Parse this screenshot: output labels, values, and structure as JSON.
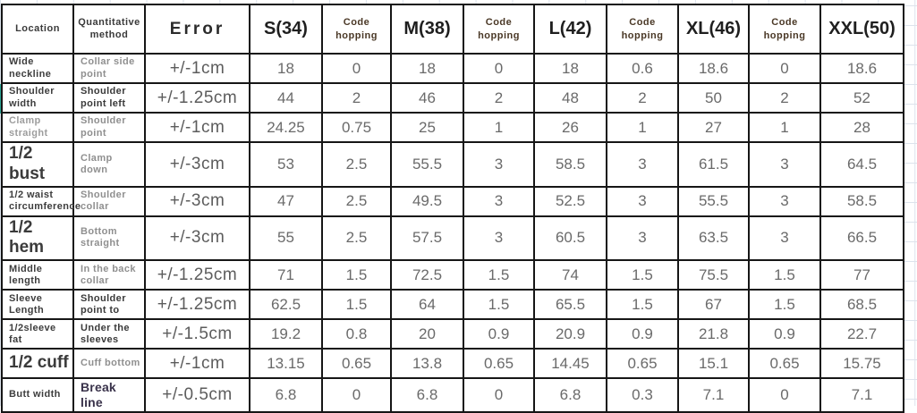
{
  "colors": {
    "grid_line": "#dde3ec",
    "table_border": "#161616",
    "number_text": "#6a6a6a",
    "code_hopping_header": "#4a3826",
    "break_line_text": "#39324a",
    "left_edge_accent": "#2aa392"
  },
  "table": {
    "columns": [
      {
        "key": "location",
        "label": "Location"
      },
      {
        "key": "method",
        "label": "Quantitative method"
      },
      {
        "key": "error",
        "label": "Error"
      },
      {
        "key": "s",
        "label": "S(34)"
      },
      {
        "key": "ch1",
        "label": "Code hopping"
      },
      {
        "key": "m",
        "label": "M(38)"
      },
      {
        "key": "ch2",
        "label": "Code hopping"
      },
      {
        "key": "l",
        "label": "L(42)"
      },
      {
        "key": "ch3",
        "label": "Code hopping"
      },
      {
        "key": "xl",
        "label": "XL(46)"
      },
      {
        "key": "ch4",
        "label": "Code hopping"
      },
      {
        "key": "xxl",
        "label": "XXL(50)"
      }
    ],
    "rows": [
      {
        "location": "Wide neckline",
        "location_style": "ls-dark",
        "method": "Collar side point",
        "method_style": "ms-gray",
        "error": "+/-1cm",
        "values": [
          "18",
          "0",
          "18",
          "0",
          "18",
          "0.6",
          "18.6",
          "0",
          "18.6"
        ]
      },
      {
        "location": "Shoulder width",
        "location_style": "ls-dark",
        "method": "Shoulder point left",
        "method_style": "ms-dark",
        "error": "+/-1.25cm",
        "values": [
          "44",
          "2",
          "46",
          "2",
          "48",
          "2",
          "50",
          "2",
          "52"
        ]
      },
      {
        "location": "Clamp straight",
        "location_style": "ls-gray",
        "method": "Shoulder point",
        "method_style": "ms-gray",
        "error": "+/-1cm",
        "values": [
          "24.25",
          "0.75",
          "25",
          "1",
          "26",
          "1",
          "27",
          "1",
          "28"
        ]
      },
      {
        "location": "1/2 bust",
        "location_style": "ls-big",
        "method": "Clamp down",
        "method_style": "ms-gray",
        "error": "+/-3cm",
        "values": [
          "53",
          "2.5",
          "55.5",
          "3",
          "58.5",
          "3",
          "61.5",
          "3",
          "64.5"
        ]
      },
      {
        "location": "1/2 waist circumference",
        "location_style": "ls-dark",
        "method": "Shoulder collar",
        "method_style": "ms-gray",
        "error": "+/-3cm",
        "values": [
          "47",
          "2.5",
          "49.5",
          "3",
          "52.5",
          "3",
          "55.5",
          "3",
          "58.5"
        ]
      },
      {
        "location": "1/2 hem",
        "location_style": "ls-big",
        "method": "Bottom straight",
        "method_style": "ms-gray",
        "error": "+/-3cm",
        "values": [
          "55",
          "2.5",
          "57.5",
          "3",
          "60.5",
          "3",
          "63.5",
          "3",
          "66.5"
        ]
      },
      {
        "location": "Middle length",
        "location_style": "ls-dark",
        "method": "In the back collar",
        "method_style": "ms-gray",
        "error": "+/-1.25cm",
        "values": [
          "71",
          "1.5",
          "72.5",
          "1.5",
          "74",
          "1.5",
          "75.5",
          "1.5",
          "77"
        ]
      },
      {
        "location": "Sleeve Length",
        "location_style": "ls-dark",
        "method": "Shoulder point to",
        "method_style": "ms-dark",
        "error": "+/-1.25cm",
        "values": [
          "62.5",
          "1.5",
          "64",
          "1.5",
          "65.5",
          "1.5",
          "67",
          "1.5",
          "68.5"
        ]
      },
      {
        "location": "1/2sleeve fat",
        "location_style": "ls-dark",
        "method": "Under the sleeves",
        "method_style": "ms-dark",
        "error": "+/-1.5cm",
        "values": [
          "19.2",
          "0.8",
          "20",
          "0.9",
          "20.9",
          "0.9",
          "21.8",
          "0.9",
          "22.7"
        ]
      },
      {
        "location": "1/2 cuff",
        "location_style": "ls-big",
        "method": "Cuff bottom",
        "method_style": "ms-gray",
        "error": "+/-1cm",
        "values": [
          "13.15",
          "0.65",
          "13.8",
          "0.65",
          "14.45",
          "0.65",
          "15.1",
          "0.65",
          "15.75"
        ]
      },
      {
        "location": "Butt width",
        "location_style": "ls-dark",
        "method": "Break line",
        "method_style": "ms-purple",
        "error": "+/-0.5cm",
        "values": [
          "6.8",
          "0",
          "6.8",
          "0",
          "6.8",
          "0.3",
          "7.1",
          "0",
          "7.1"
        ]
      }
    ]
  }
}
